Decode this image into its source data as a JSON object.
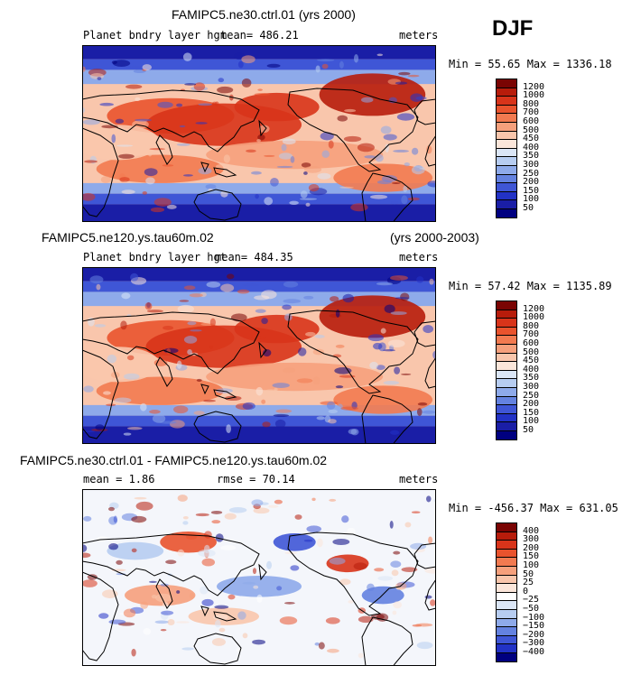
{
  "season": "DJF",
  "panels": [
    {
      "title": "FAMIPC5.ne30.ctrl.01 (yrs 2000)",
      "title_right": "",
      "left_label": "Planet bndry layer hgt",
      "mid_label": "mean= 486.21",
      "units": "meters",
      "minmax": "Min =  55.65 Max = 1336.18",
      "colorbar": [
        "1200",
        "1000",
        "800",
        "700",
        "600",
        "500",
        "450",
        "400",
        "350",
        "300",
        "250",
        "200",
        "150",
        "100",
        "50"
      ],
      "palette": "full"
    },
    {
      "title": "FAMIPC5.ne120.ys.tau60m.02",
      "title_right": "(yrs 2000-2003)",
      "left_label": "Planet bndry layer hgt",
      "mid_label": "mean= 484.35",
      "units": "meters",
      "minmax": "Min =  57.42 Max = 1135.89",
      "colorbar": [
        "1200",
        "1000",
        "800",
        "700",
        "600",
        "500",
        "450",
        "400",
        "350",
        "300",
        "250",
        "200",
        "150",
        "100",
        "50"
      ],
      "palette": "full"
    },
    {
      "title": "FAMIPC5.ne30.ctrl.01 - FAMIPC5.ne120.ys.tau60m.02",
      "title_right": "",
      "left_label": "mean =   1.86",
      "mid_label": "rmse =  70.14",
      "units": "meters",
      "minmax": "Min = -456.37 Max = 631.05",
      "colorbar": [
        "400",
        "300",
        "200",
        "150",
        "100",
        "50",
        "25",
        "0",
        "−25",
        "−50",
        "−100",
        "−150",
        "−200",
        "−300",
        "−400"
      ],
      "palette": "diff"
    }
  ],
  "colors": {
    "full": [
      "#7a0403",
      "#b71c0b",
      "#d8341a",
      "#e9532d",
      "#f27a50",
      "#f6a07c",
      "#f9c6ac",
      "#fbe6da",
      "#dbe6f6",
      "#b7cdf1",
      "#8eaaea",
      "#6482e0",
      "#3f56d6",
      "#2232c6",
      "#1a1ea6",
      "#000080"
    ],
    "diff": [
      "#7a0403",
      "#b71c0b",
      "#d8341a",
      "#e9532d",
      "#f27a50",
      "#f6a07c",
      "#f9c6ac",
      "#fbe6da",
      "#ffffff",
      "#dbe6f6",
      "#b7cdf1",
      "#8eaaea",
      "#6482e0",
      "#3f56d6",
      "#2232c6",
      "#000080"
    ]
  }
}
